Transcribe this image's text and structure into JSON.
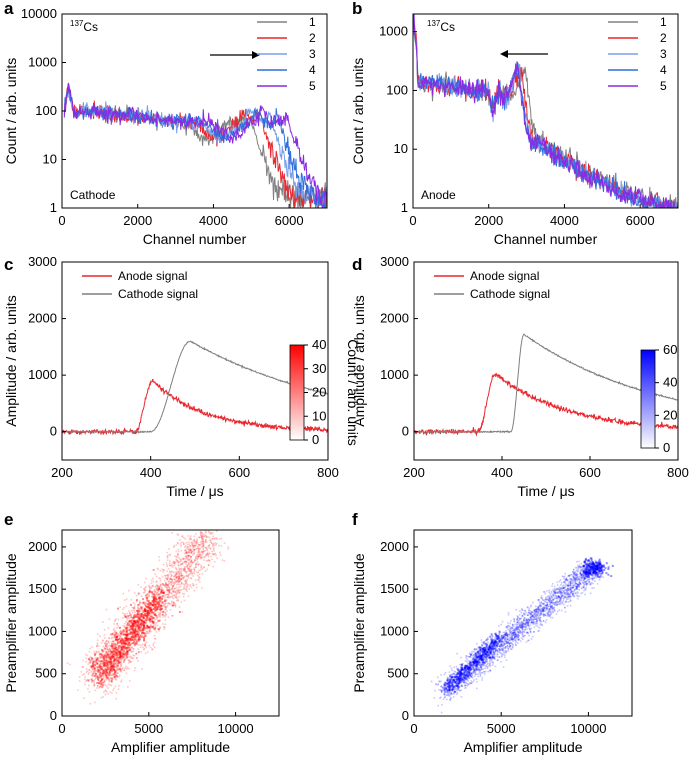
{
  "chart_data": [
    {
      "panel": "a",
      "type": "line",
      "xlabel": "Channel number",
      "ylabel": "Count / arb. units",
      "xlim": [
        0,
        7000
      ],
      "ylim": [
        1,
        10000
      ],
      "yscale": "log",
      "xticks": [
        "0",
        "2000",
        "4000",
        "6000"
      ],
      "yticks": [
        "1",
        "10",
        "100",
        "1000",
        "10000"
      ],
      "isotope_label": {
        "mass": "137",
        "element": "Cs"
      },
      "side_label": "Cathode",
      "arrow_direction": "right",
      "legend": [
        "1",
        "2",
        "3",
        "4",
        "5"
      ],
      "series": [
        {
          "name": "1",
          "color": "#808080",
          "peak_x": 4600,
          "peak_y": 60,
          "cutoff_x": 5000
        },
        {
          "name": "2",
          "color": "#e8272f",
          "peak_x": 4850,
          "peak_y": 95,
          "cutoff_x": 5200
        },
        {
          "name": "3",
          "color": "#7b9fe8",
          "peak_x": 5000,
          "peak_y": 98,
          "cutoff_x": 5450
        },
        {
          "name": "4",
          "color": "#2f6fe0",
          "peak_x": 5150,
          "peak_y": 100,
          "cutoff_x": 5650
        },
        {
          "name": "5",
          "color": "#8a2be2",
          "peak_x": 5300,
          "peak_y": 100,
          "cutoff_x": 5900
        }
      ]
    },
    {
      "panel": "b",
      "type": "line",
      "xlabel": "Channel number",
      "ylabel": "Count / arb. units",
      "xlim": [
        0,
        7000
      ],
      "ylim": [
        1,
        2000
      ],
      "yscale": "log",
      "xticks": [
        "0",
        "2000",
        "4000",
        "6000"
      ],
      "yticks": [
        "1",
        "10",
        "100",
        "1000"
      ],
      "isotope_label": {
        "mass": "137",
        "element": "Cs"
      },
      "side_label": "Anode",
      "arrow_direction": "left",
      "legend": [
        "1",
        "2",
        "3",
        "4",
        "5"
      ],
      "series": [
        {
          "name": "1",
          "color": "#808080",
          "peak_x": 2950,
          "peak_y": 230
        },
        {
          "name": "2",
          "color": "#e8272f",
          "peak_x": 2850,
          "peak_y": 235
        },
        {
          "name": "3",
          "color": "#7b9fe8",
          "peak_x": 2800,
          "peak_y": 225
        },
        {
          "name": "4",
          "color": "#2f6fe0",
          "peak_x": 2780,
          "peak_y": 220
        },
        {
          "name": "5",
          "color": "#8a2be2",
          "peak_x": 2760,
          "peak_y": 230
        }
      ]
    },
    {
      "panel": "c",
      "type": "line",
      "xlabel": "Time /  μs",
      "ylabel": "Amplitude / arb. units",
      "xlim": [
        200,
        800
      ],
      "ylim": [
        -500,
        3000
      ],
      "xticks": [
        "200",
        "400",
        "600",
        "800"
      ],
      "yticks": [
        "0",
        "1000",
        "2000",
        "3000"
      ],
      "series": [
        {
          "name": "Anode signal",
          "color": "#e8272f",
          "rise_start": 365,
          "peak_t": 405,
          "peak_y": 900,
          "end_y": 30
        },
        {
          "name": "Cathode signal",
          "color": "#7f7f7f",
          "rise_start": 400,
          "peak_t": 490,
          "peak_y": 1600,
          "end_y": 670
        }
      ]
    },
    {
      "panel": "d",
      "type": "line",
      "xlabel": "Time /  μs",
      "ylabel": "Amplitude / arb. units",
      "xlim": [
        200,
        800
      ],
      "ylim": [
        -500,
        3000
      ],
      "xticks": [
        "200",
        "400",
        "600",
        "800"
      ],
      "yticks": [
        "0",
        "1000",
        "2000",
        "3000"
      ],
      "series": [
        {
          "name": "Anode signal",
          "color": "#e8272f",
          "rise_start": 345,
          "peak_t": 385,
          "peak_y": 1020,
          "end_y": 80
        },
        {
          "name": "Cathode signal",
          "color": "#7f7f7f",
          "rise_start": 420,
          "peak_t": 450,
          "peak_y": 1720,
          "end_y": 560
        }
      ]
    },
    {
      "panel": "e",
      "type": "heatmap",
      "xlabel": "Amplifier amplitude",
      "ylabel": "Preamplifier amplitude",
      "xlim": [
        0,
        12500
      ],
      "ylim": [
        0,
        2200
      ],
      "xticks": [
        "0",
        "5000",
        "10000"
      ],
      "yticks": [
        "0",
        "500",
        "1000",
        "1500",
        "2000"
      ],
      "colorbar": {
        "label": "Count / arb. units",
        "min": 0,
        "max": 40,
        "ticks": [
          "0",
          "10",
          "20",
          "30",
          "40"
        ],
        "color": "#ff0000"
      },
      "band": {
        "from": [
          2000,
          480
        ],
        "to": [
          8500,
          2150
        ],
        "dense_center": [
          3600,
          860
        ]
      }
    },
    {
      "panel": "f",
      "type": "heatmap",
      "xlabel": "Amplifier amplitude",
      "ylabel": "Preamplifier amplitude",
      "xlim": [
        0,
        12500
      ],
      "ylim": [
        0,
        2200
      ],
      "xticks": [
        "0",
        "5000",
        "10000"
      ],
      "yticks": [
        "0",
        "500",
        "1000",
        "1500",
        "2000"
      ],
      "colorbar": {
        "label": "Count / arb. units",
        "min": 0,
        "max": 60,
        "ticks": [
          "0",
          "20",
          "40",
          "60"
        ],
        "color": "#0000ff"
      },
      "band": {
        "from": [
          1700,
          300
        ],
        "to": [
          10200,
          1760
        ],
        "dense_center": [
          10300,
          1760
        ]
      }
    }
  ]
}
